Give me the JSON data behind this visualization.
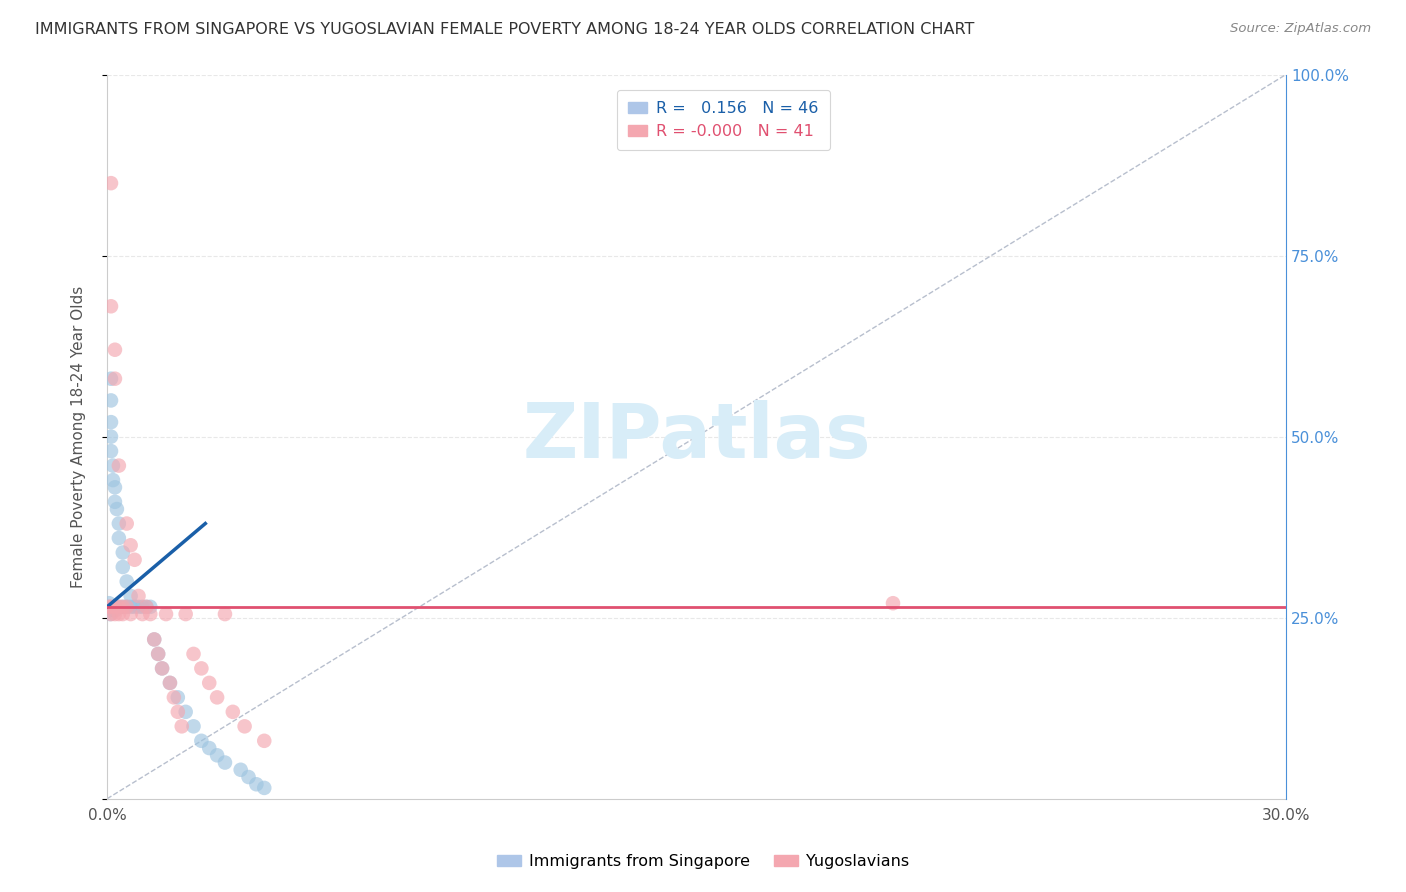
{
  "title": "IMMIGRANTS FROM SINGAPORE VS YUGOSLAVIAN FEMALE POVERTY AMONG 18-24 YEAR OLDS CORRELATION CHART",
  "source": "Source: ZipAtlas.com",
  "ylabel": "Female Poverty Among 18-24 Year Olds",
  "xlim": [
    0.0,
    0.3
  ],
  "ylim": [
    0.0,
    1.0
  ],
  "blue_scatter_x": [
    0.0005,
    0.0005,
    0.0005,
    0.0008,
    0.001,
    0.001,
    0.001,
    0.001,
    0.001,
    0.0015,
    0.0015,
    0.002,
    0.002,
    0.002,
    0.002,
    0.0025,
    0.003,
    0.003,
    0.003,
    0.004,
    0.004,
    0.004,
    0.005,
    0.005,
    0.006,
    0.006,
    0.007,
    0.008,
    0.009,
    0.01,
    0.011,
    0.012,
    0.013,
    0.014,
    0.016,
    0.018,
    0.02,
    0.022,
    0.024,
    0.026,
    0.028,
    0.03,
    0.034,
    0.036,
    0.038,
    0.04
  ],
  "blue_scatter_y": [
    0.27,
    0.265,
    0.26,
    0.255,
    0.58,
    0.55,
    0.52,
    0.5,
    0.48,
    0.46,
    0.44,
    0.43,
    0.41,
    0.265,
    0.26,
    0.4,
    0.38,
    0.36,
    0.265,
    0.34,
    0.32,
    0.265,
    0.3,
    0.265,
    0.28,
    0.265,
    0.265,
    0.265,
    0.265,
    0.265,
    0.265,
    0.22,
    0.2,
    0.18,
    0.16,
    0.14,
    0.12,
    0.1,
    0.08,
    0.07,
    0.06,
    0.05,
    0.04,
    0.03,
    0.02,
    0.015
  ],
  "pink_scatter_x": [
    0.0005,
    0.001,
    0.001,
    0.001,
    0.001,
    0.002,
    0.002,
    0.002,
    0.002,
    0.003,
    0.003,
    0.003,
    0.004,
    0.004,
    0.005,
    0.005,
    0.006,
    0.006,
    0.007,
    0.008,
    0.009,
    0.01,
    0.011,
    0.012,
    0.013,
    0.014,
    0.015,
    0.016,
    0.017,
    0.018,
    0.019,
    0.02,
    0.022,
    0.024,
    0.026,
    0.028,
    0.03,
    0.032,
    0.035,
    0.04,
    0.2
  ],
  "pink_scatter_y": [
    0.265,
    0.85,
    0.68,
    0.265,
    0.255,
    0.62,
    0.58,
    0.265,
    0.255,
    0.46,
    0.265,
    0.255,
    0.265,
    0.255,
    0.38,
    0.265,
    0.35,
    0.255,
    0.33,
    0.28,
    0.255,
    0.265,
    0.255,
    0.22,
    0.2,
    0.18,
    0.255,
    0.16,
    0.14,
    0.12,
    0.1,
    0.255,
    0.2,
    0.18,
    0.16,
    0.14,
    0.255,
    0.12,
    0.1,
    0.08,
    0.27
  ],
  "blue_line_x": [
    0.0,
    0.025
  ],
  "blue_line_y": [
    0.265,
    0.38
  ],
  "pink_line_y": 0.265,
  "blue_color": "#9ec4e0",
  "pink_color": "#f4a7b0",
  "blue_line_color": "#1a5fa8",
  "pink_line_color": "#e05070",
  "ref_line_color": "#b0b8c8",
  "grid_color": "#e8e8e8",
  "title_color": "#333333",
  "source_color": "#888888",
  "watermark": "ZIPatlas",
  "watermark_color": "#d8edf8",
  "right_tick_color": "#4a90d9",
  "background_color": "#ffffff",
  "legend_r_blue": "R =   0.156   N = 46",
  "legend_r_pink": "R = -0.000   N = 41"
}
